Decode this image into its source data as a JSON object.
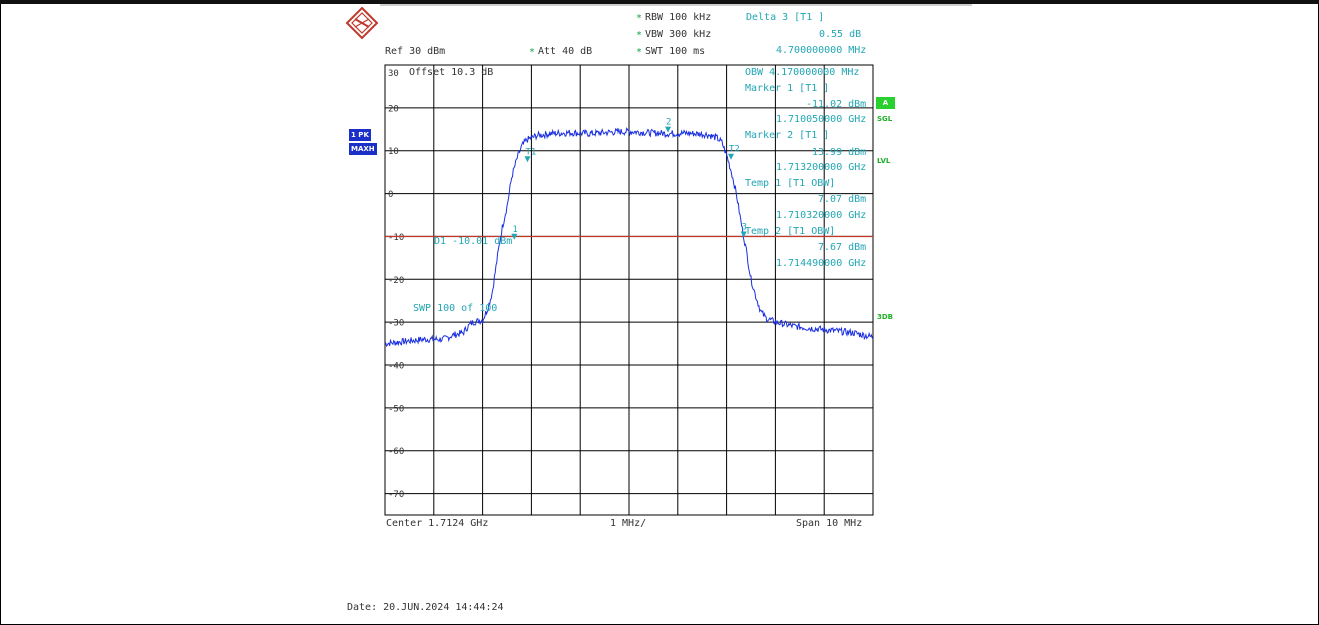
{
  "header": {
    "ref": "Ref  30 dBm",
    "att": "Att  40 dB",
    "rbw": "RBW 100 kHz",
    "vbw": "VBW 300 kHz",
    "swt": "SWT 100 ms",
    "offset": "Offset  10.3 dB"
  },
  "marker_panel": {
    "delta_title": "Delta 3 [T1 ]",
    "delta_value": "0.55 dB",
    "delta_freq": "4.700000000 MHz",
    "obw": "OBW  4.170000000 MHz",
    "m1_title": "Marker 1 [T1 ]",
    "m1_value": "-11.02 dBm",
    "m1_freq": "1.710050000 GHz",
    "m2_title": "Marker 2 [T1 ]",
    "m2_value": "13.99 dBm",
    "m2_freq": "1.713200000 GHz",
    "temp1_title": "Temp 1 [T1 OBW]",
    "temp1_value": "7.07 dBm",
    "temp1_freq": "1.710320000 GHz",
    "temp2_title": "Temp 2 [T1 OBW]",
    "temp2_value": "7.67 dBm",
    "temp2_freq": "1.714490000 GHz"
  },
  "badges": {
    "pk": "1 PK",
    "maxh": "MAXH",
    "a": "A",
    "sgl": "SGL",
    "lvl": "LVL",
    "db3": "3DB"
  },
  "plot_labels": {
    "d1": "D1  -10.01 dBm",
    "swp": "SWP   100 of  100",
    "m2": "2",
    "t1": "T1",
    "t2": "T2",
    "m1": "1",
    "d3": "3"
  },
  "footer": {
    "center": "Center  1.7124 GHz",
    "div": "1 MHz/",
    "span": "Span  10 MHz",
    "date": "Date: 20.JUN.2024  14:44:24"
  },
  "colors": {
    "trace": "#1a2fe0",
    "grid": "#000000",
    "display_line": "#c0392b",
    "annotation": "#22a6b4",
    "badge_blue": "#1b30c9",
    "badge_green": "#29d12e"
  },
  "chart_data": {
    "type": "line",
    "xlabel": "",
    "ylabel": "",
    "x_unit": "MHz",
    "center_ghz": 1.7124,
    "span_mhz": 10,
    "div_mhz": 1,
    "xlim": [
      1.7074,
      1.7174
    ],
    "ylim": [
      -75,
      30
    ],
    "y_ticks": [
      30,
      20,
      10,
      0,
      -10,
      -20,
      -30,
      -40,
      -50,
      -60,
      -70
    ],
    "display_line_dbm": -10.01,
    "series": [
      {
        "x": [
          1.7074,
          1.7078,
          1.7082,
          1.7086,
          1.7088,
          1.709,
          1.7091,
          1.7092,
          1.7094,
          1.7095,
          1.7096,
          1.7097,
          1.7098,
          1.7099,
          1.71,
          1.7101,
          1.7102,
          1.7103,
          1.7105,
          1.7108,
          1.7112,
          1.7116,
          1.712,
          1.7124,
          1.7128,
          1.7132,
          1.7136,
          1.714,
          1.7142,
          1.7143,
          1.7144,
          1.7145,
          1.7146,
          1.7147,
          1.7148,
          1.7149,
          1.715,
          1.7151,
          1.7152,
          1.7154,
          1.7158,
          1.7162,
          1.7166,
          1.717,
          1.7174
        ],
        "y": [
          -35,
          -34.5,
          -34,
          -34,
          -33,
          -32.5,
          -31,
          -30,
          -29.5,
          -27,
          -23,
          -15,
          -8,
          -3,
          4,
          8,
          11,
          12.5,
          13.5,
          14,
          14.2,
          14,
          14.3,
          14.5,
          14.2,
          14,
          14.1,
          13.8,
          13,
          12,
          9,
          5,
          0,
          -7,
          -13,
          -20,
          -24,
          -27.5,
          -29,
          -30,
          -31,
          -31.5,
          -32,
          -32.5,
          -33.5
        ]
      }
    ],
    "markers": [
      {
        "label": "1",
        "x": 1.71005,
        "y": -11.02
      },
      {
        "label": "2",
        "x": 1.7132,
        "y": 13.99
      },
      {
        "label": "3",
        "x": 1.71475,
        "y": -10.47
      },
      {
        "label": "T1",
        "x": 1.71032,
        "y": 7.07
      },
      {
        "label": "T2",
        "x": 1.71449,
        "y": 7.67
      }
    ]
  }
}
